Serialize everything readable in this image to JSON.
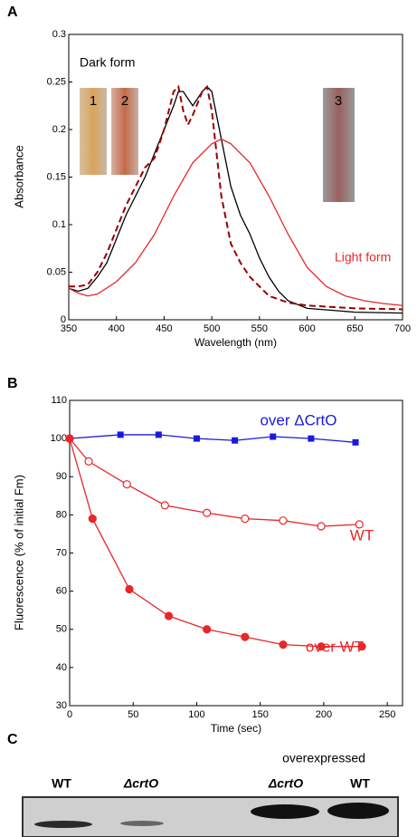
{
  "chart_data": [
    {
      "type": "line",
      "panel_label": "A",
      "xlabel": "Wavelength (nm)",
      "ylabel": "Absorbance",
      "xlim": [
        350,
        700
      ],
      "ylim": [
        0,
        0.3
      ],
      "xticks": [
        350,
        400,
        450,
        500,
        550,
        600,
        650,
        700
      ],
      "yticks": [
        0,
        0.05,
        0.1,
        0.15,
        0.2,
        0.25,
        0.3
      ],
      "annotations": [
        "Dark form",
        "Light form"
      ],
      "tube_labels": [
        "1",
        "2",
        "3"
      ],
      "series": [
        {
          "color": "#000000",
          "dashed": false,
          "x": [
            350,
            360,
            370,
            380,
            390,
            400,
            410,
            420,
            430,
            440,
            450,
            460,
            465,
            470,
            480,
            490,
            495,
            500,
            510,
            520,
            530,
            540,
            550,
            560,
            570,
            580,
            600,
            650,
            700
          ],
          "values": [
            0.033,
            0.03,
            0.033,
            0.045,
            0.06,
            0.085,
            0.11,
            0.13,
            0.15,
            0.175,
            0.2,
            0.225,
            0.24,
            0.24,
            0.225,
            0.24,
            0.245,
            0.24,
            0.19,
            0.14,
            0.11,
            0.09,
            0.065,
            0.045,
            0.03,
            0.02,
            0.012,
            0.008,
            0.007
          ]
        },
        {
          "color": "#990000",
          "dashed": true,
          "x": [
            350,
            360,
            370,
            380,
            390,
            400,
            410,
            420,
            430,
            440,
            450,
            460,
            465,
            470,
            475,
            480,
            490,
            495,
            500,
            510,
            520,
            530,
            540,
            550,
            560,
            580,
            600,
            650,
            700
          ],
          "values": [
            0.035,
            0.035,
            0.037,
            0.05,
            0.07,
            0.095,
            0.12,
            0.14,
            0.16,
            0.17,
            0.2,
            0.24,
            0.245,
            0.22,
            0.205,
            0.215,
            0.24,
            0.245,
            0.22,
            0.13,
            0.08,
            0.06,
            0.045,
            0.035,
            0.025,
            0.018,
            0.015,
            0.012,
            0.011
          ]
        },
        {
          "color": "#e8272a",
          "dashed": false,
          "x": [
            350,
            360,
            370,
            380,
            400,
            420,
            440,
            460,
            480,
            500,
            510,
            520,
            540,
            560,
            580,
            600,
            620,
            640,
            660,
            680,
            700
          ],
          "values": [
            0.033,
            0.028,
            0.025,
            0.027,
            0.04,
            0.06,
            0.09,
            0.13,
            0.165,
            0.185,
            0.19,
            0.185,
            0.165,
            0.13,
            0.09,
            0.055,
            0.035,
            0.025,
            0.02,
            0.017,
            0.015
          ]
        }
      ]
    },
    {
      "type": "line",
      "panel_label": "B",
      "xlabel": "Time (sec)",
      "ylabel": "Fluorescence (% of initial Fm)",
      "xlim": [
        0,
        262
      ],
      "ylim": [
        30,
        110
      ],
      "xticks": [
        0,
        50,
        100,
        150,
        200,
        250
      ],
      "yticks": [
        30,
        40,
        50,
        60,
        70,
        80,
        90,
        100,
        110
      ],
      "series": [
        {
          "name": "over ΔCrtO",
          "color": "#1a1adc",
          "marker": "square",
          "x": [
            0,
            40,
            70,
            100,
            130,
            160,
            190,
            225
          ],
          "values": [
            100,
            101,
            101,
            100,
            99.5,
            100.5,
            100,
            99
          ]
        },
        {
          "name": "WT",
          "color": "#e8272a",
          "marker": "open-circle",
          "x": [
            0,
            15,
            45,
            75,
            108,
            138,
            168,
            198,
            228
          ],
          "values": [
            100,
            94,
            88,
            82.5,
            80.5,
            79,
            78.5,
            77,
            77.5
          ]
        },
        {
          "name": "over WT",
          "color": "#e8272a",
          "marker": "circle",
          "x": [
            0,
            18,
            47,
            78,
            108,
            138,
            168,
            198,
            230
          ],
          "values": [
            100,
            79,
            60.5,
            53.5,
            50,
            48,
            46,
            45.5,
            45.5
          ]
        }
      ]
    }
  ],
  "gel": {
    "panel_label": "C",
    "group_label": "overexpressed",
    "lanes": [
      "WT",
      "ΔcrtO",
      "ΔcrtO",
      "WT"
    ]
  }
}
